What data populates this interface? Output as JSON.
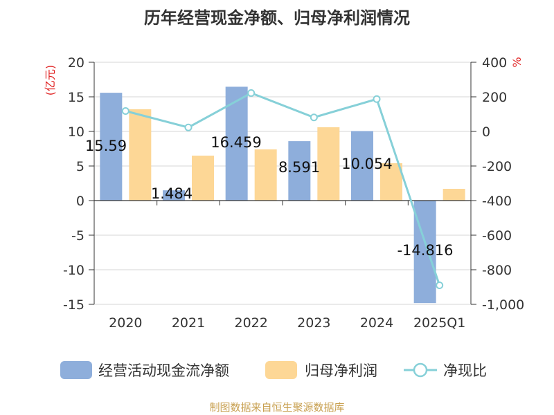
{
  "title": "历年经营现金净额、归母净利润情况",
  "source": "制图数据来自恒生聚源数据库",
  "chart_data": {
    "type": "bar-line",
    "title": "历年经营现金净额、归母净利润情况",
    "categories": [
      "2020",
      "2021",
      "2022",
      "2023",
      "2024",
      "2025Q1"
    ],
    "left_axis": {
      "unit": "(亿元)",
      "min": -15,
      "max": 20,
      "ticks": [
        20,
        15,
        10,
        5,
        0,
        -5,
        -10,
        -15
      ],
      "tick_labels": [
        "20",
        "15",
        "10",
        "5",
        "0",
        "-5",
        "-10",
        "-15"
      ]
    },
    "right_axis": {
      "unit": "%",
      "min": -1000,
      "max": 400,
      "ticks": [
        400,
        200,
        0,
        -200,
        -400,
        -600,
        -800,
        -1000
      ],
      "tick_labels": [
        "400",
        "200",
        "0",
        "-200",
        "-400",
        "-600",
        "-800",
        "-1,000"
      ]
    },
    "series": [
      {
        "name": "经营活动现金流净额",
        "type": "bar",
        "axis": "left",
        "color": "#8eaedb",
        "values": [
          15.59,
          1.484,
          16.459,
          8.591,
          10.054,
          -14.816
        ],
        "labels": [
          "15.59",
          "1.484",
          "16.459",
          "8.591",
          "10.054",
          "-14.816"
        ]
      },
      {
        "name": "归母净利润",
        "type": "bar",
        "axis": "left",
        "color": "#fdd796",
        "values": [
          13.2,
          6.5,
          7.4,
          10.6,
          5.4,
          1.7
        ]
      },
      {
        "name": "净现比",
        "type": "line",
        "axis": "right",
        "color": "#86d0d8",
        "values": [
          118,
          23,
          222,
          81,
          187,
          -890
        ]
      }
    ],
    "legend_position": "bottom",
    "grid": true
  }
}
